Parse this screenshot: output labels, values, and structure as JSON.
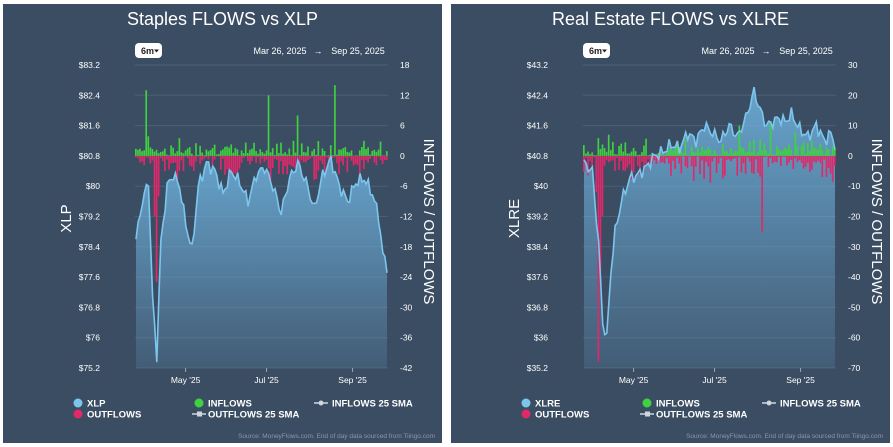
{
  "chart_data": [
    {
      "type": "bar",
      "title": "Staples FLOWS vs XLP",
      "period_button": "6m",
      "date_from": "Mar 26, 2025",
      "date_arrow": "→",
      "date_to": "Sep 25, 2025",
      "left_axis_label": "XLP",
      "right_axis_label": "INFLOWS / OUTFLOWS",
      "left_ticks": [
        "$83.2",
        "$82.4",
        "$81.6",
        "$80.8",
        "$80",
        "$79.2",
        "$78.4",
        "$77.6",
        "$76.8",
        "$76",
        "$75.2"
      ],
      "right_ticks": [
        "18",
        "12",
        "6",
        "0",
        "-6",
        "-12",
        "-18",
        "-24",
        "-30",
        "-36",
        "-42"
      ],
      "price_range": [
        75.2,
        83.2
      ],
      "flow_range": [
        -42,
        18
      ],
      "x_ticks": [
        "May '25",
        "Jul '25",
        "Sep '25"
      ],
      "price_anchors": [
        [
          0,
          78.6
        ],
        [
          3,
          79.6
        ],
        [
          6,
          80.1
        ],
        [
          8,
          77.0
        ],
        [
          10,
          75.5
        ],
        [
          12,
          78.5
        ],
        [
          15,
          80.0
        ],
        [
          18,
          80.3
        ],
        [
          21,
          80.0
        ],
        [
          24,
          79.0
        ],
        [
          27,
          78.3
        ],
        [
          30,
          80.0
        ],
        [
          34,
          80.6
        ],
        [
          38,
          80.4
        ],
        [
          42,
          79.8
        ],
        [
          46,
          80.4
        ],
        [
          50,
          80.1
        ],
        [
          54,
          79.6
        ],
        [
          58,
          80.3
        ],
        [
          62,
          80.5
        ],
        [
          66,
          80.0
        ],
        [
          70,
          79.3
        ],
        [
          74,
          80.2
        ],
        [
          78,
          80.6
        ],
        [
          82,
          80.1
        ],
        [
          86,
          79.4
        ],
        [
          90,
          80.3
        ],
        [
          94,
          80.7
        ],
        [
          98,
          80.0
        ],
        [
          102,
          79.6
        ],
        [
          106,
          80.1
        ],
        [
          110,
          80.2
        ],
        [
          114,
          79.8
        ],
        [
          117,
          79.2
        ],
        [
          119,
          78.2
        ],
        [
          121,
          77.9
        ]
      ],
      "flow_seed": 7,
      "big_outflows": [
        [
          10,
          -25
        ],
        [
          11,
          -8
        ],
        [
          9,
          -12
        ]
      ],
      "big_inflows": [
        [
          5,
          13
        ],
        [
          64,
          12
        ],
        [
          96,
          14
        ],
        [
          78,
          8
        ]
      ],
      "legend": {
        "series": "XLP",
        "outflows": "OUTFLOWS",
        "inflows": "INFLOWS",
        "outflows_sma": "OUTFLOWS 25 SMA",
        "inflows_sma": "INFLOWS 25 SMA"
      },
      "source": "Source: MoneyFlows.com. End of day data sourced from Tiingo.com"
    },
    {
      "type": "bar",
      "title": "Real Estate FLOWS vs XLRE",
      "period_button": "6m",
      "date_from": "Mar 26, 2025",
      "date_arrow": "→",
      "date_to": "Sep 25, 2025",
      "left_axis_label": "XLRE",
      "right_axis_label": "INFLOWS / OUTFLOWS",
      "left_ticks": [
        "$43.2",
        "$42.4",
        "$41.6",
        "$40.8",
        "$40",
        "$39.2",
        "$38.4",
        "$37.6",
        "$36.8",
        "$36",
        "$35.2"
      ],
      "right_ticks": [
        "30",
        "20",
        "10",
        "0",
        "-10",
        "-20",
        "-30",
        "-40",
        "-50",
        "-60",
        "-70"
      ],
      "price_range": [
        35.2,
        43.2
      ],
      "flow_range": [
        -70,
        30
      ],
      "x_ticks": [
        "May '25",
        "Jul '25",
        "Sep '25"
      ],
      "price_anchors": [
        [
          0,
          40.6
        ],
        [
          4,
          40.4
        ],
        [
          7,
          38.5
        ],
        [
          9,
          36.4
        ],
        [
          11,
          36.0
        ],
        [
          13,
          37.8
        ],
        [
          15,
          38.8
        ],
        [
          18,
          39.6
        ],
        [
          22,
          40.2
        ],
        [
          26,
          40.3
        ],
        [
          30,
          40.5
        ],
        [
          34,
          40.8
        ],
        [
          38,
          40.9
        ],
        [
          42,
          41.1
        ],
        [
          46,
          41.0
        ],
        [
          50,
          41.4
        ],
        [
          54,
          41.2
        ],
        [
          58,
          41.6
        ],
        [
          62,
          41.4
        ],
        [
          66,
          41.2
        ],
        [
          70,
          41.6
        ],
        [
          74,
          41.3
        ],
        [
          78,
          41.8
        ],
        [
          82,
          42.5
        ],
        [
          85,
          42.0
        ],
        [
          88,
          41.6
        ],
        [
          91,
          41.7
        ],
        [
          94,
          41.8
        ],
        [
          97,
          41.7
        ],
        [
          100,
          41.9
        ],
        [
          104,
          41.5
        ],
        [
          108,
          41.3
        ],
        [
          112,
          41.6
        ],
        [
          116,
          41.2
        ],
        [
          119,
          41.4
        ],
        [
          121,
          41.1
        ]
      ],
      "flow_seed": 13,
      "big_outflows": [
        [
          7,
          -68
        ],
        [
          8,
          -38
        ],
        [
          9,
          -20
        ],
        [
          6,
          -12
        ],
        [
          86,
          -25
        ]
      ],
      "big_inflows": [
        [
          12,
          7
        ],
        [
          75,
          10
        ],
        [
          90,
          11
        ],
        [
          102,
          8
        ]
      ],
      "legend": {
        "series": "XLRE",
        "outflows": "OUTFLOWS",
        "inflows": "INFLOWS",
        "outflows_sma": "OUTFLOWS 25 SMA",
        "inflows_sma": "INFLOWS 25 SMA"
      },
      "source": "Source: MoneyFlows.com. End of day data sourced from Tiingo.com"
    }
  ],
  "colors": {
    "panel_bg": "#3b4d63",
    "price_line": "#7cc6ee",
    "inflow": "#3fd23f",
    "outflow": "#e0286a",
    "grid": "#4d5e73"
  }
}
